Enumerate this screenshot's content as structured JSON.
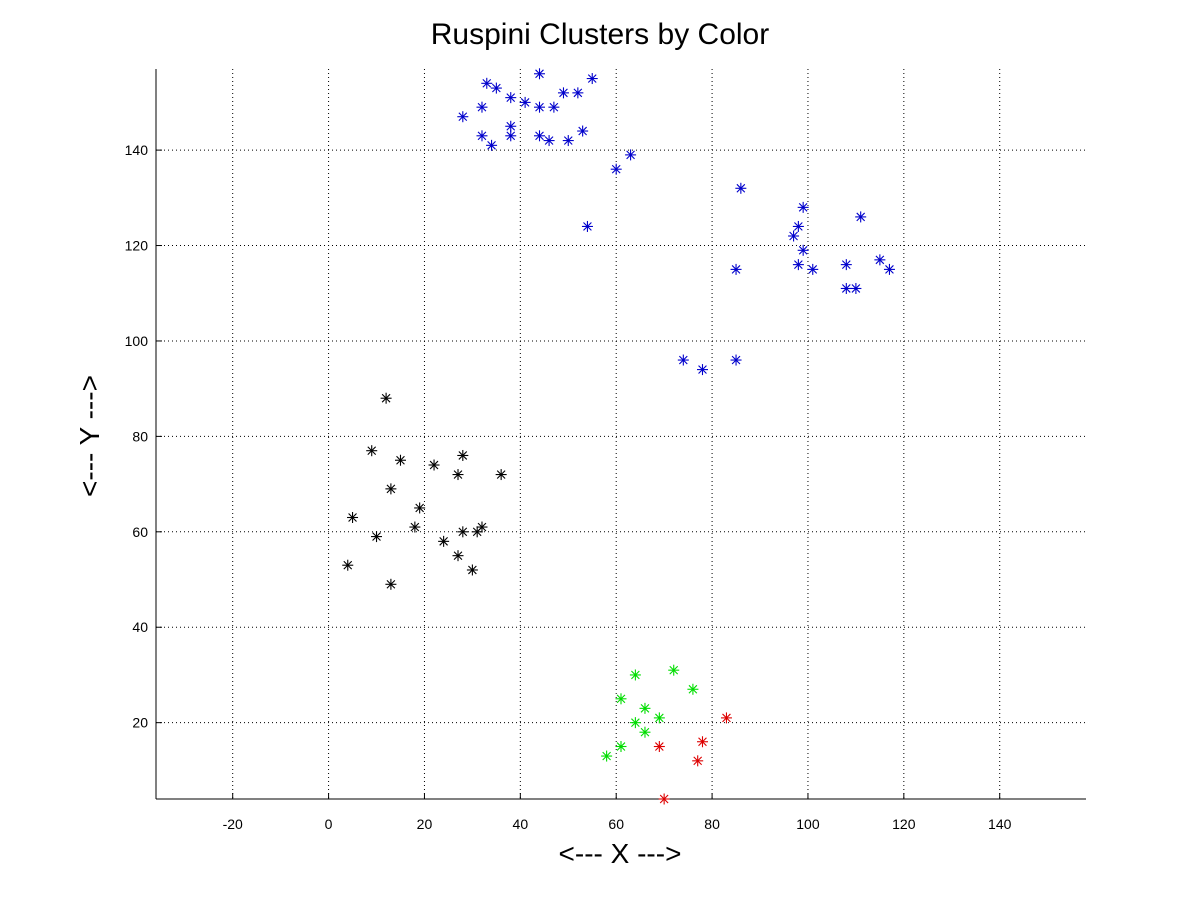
{
  "chart_data": {
    "type": "scatter",
    "title": "Ruspini Clusters by Color",
    "xlabel": "<--- X --->",
    "ylabel": "<--- Y --->",
    "xlim": [
      -36,
      158
    ],
    "ylim": [
      4,
      157
    ],
    "xticks": [
      -20,
      0,
      20,
      40,
      60,
      80,
      100,
      120,
      140
    ],
    "yticks": [
      20,
      40,
      60,
      80,
      100,
      120,
      140
    ],
    "grid": true,
    "legend": "none",
    "marker": "asterisk",
    "series": [
      {
        "color": "#0000cc",
        "points": [
          [
            33,
            154
          ],
          [
            35,
            153
          ],
          [
            44,
            156
          ],
          [
            55,
            155
          ],
          [
            49,
            152
          ],
          [
            52,
            152
          ],
          [
            38,
            151
          ],
          [
            41,
            150
          ],
          [
            28,
            147
          ],
          [
            32,
            149
          ],
          [
            44,
            149
          ],
          [
            47,
            149
          ],
          [
            38,
            145
          ],
          [
            53,
            144
          ],
          [
            32,
            143
          ],
          [
            38,
            143
          ],
          [
            44,
            143
          ],
          [
            46,
            142
          ],
          [
            50,
            142
          ],
          [
            34,
            141
          ],
          [
            63,
            139
          ],
          [
            60,
            136
          ],
          [
            54,
            124
          ],
          [
            86,
            132
          ],
          [
            99,
            128
          ],
          [
            111,
            126
          ],
          [
            98,
            124
          ],
          [
            97,
            122
          ],
          [
            99,
            119
          ],
          [
            115,
            117
          ],
          [
            85,
            115
          ],
          [
            98,
            116
          ],
          [
            101,
            115
          ],
          [
            108,
            116
          ],
          [
            117,
            115
          ],
          [
            108,
            111
          ],
          [
            110,
            111
          ],
          [
            74,
            96
          ],
          [
            85,
            96
          ],
          [
            78,
            94
          ]
        ]
      },
      {
        "color": "#000000",
        "points": [
          [
            12,
            88
          ],
          [
            9,
            77
          ],
          [
            15,
            75
          ],
          [
            28,
            76
          ],
          [
            22,
            74
          ],
          [
            27,
            72
          ],
          [
            36,
            72
          ],
          [
            13,
            69
          ],
          [
            19,
            65
          ],
          [
            5,
            63
          ],
          [
            18,
            61
          ],
          [
            28,
            60
          ],
          [
            31,
            60
          ],
          [
            32,
            61
          ],
          [
            10,
            59
          ],
          [
            24,
            58
          ],
          [
            27,
            55
          ],
          [
            4,
            53
          ],
          [
            30,
            52
          ],
          [
            13,
            49
          ]
        ]
      },
      {
        "color": "#00dd00",
        "points": [
          [
            72,
            31
          ],
          [
            64,
            30
          ],
          [
            76,
            27
          ],
          [
            61,
            25
          ],
          [
            66,
            23
          ],
          [
            69,
            21
          ],
          [
            64,
            20
          ],
          [
            66,
            18
          ],
          [
            61,
            15
          ],
          [
            58,
            13
          ]
        ]
      },
      {
        "color": "#dd0000",
        "points": [
          [
            83,
            21
          ],
          [
            78,
            16
          ],
          [
            69,
            15
          ],
          [
            77,
            12
          ],
          [
            70,
            4
          ]
        ]
      }
    ]
  }
}
